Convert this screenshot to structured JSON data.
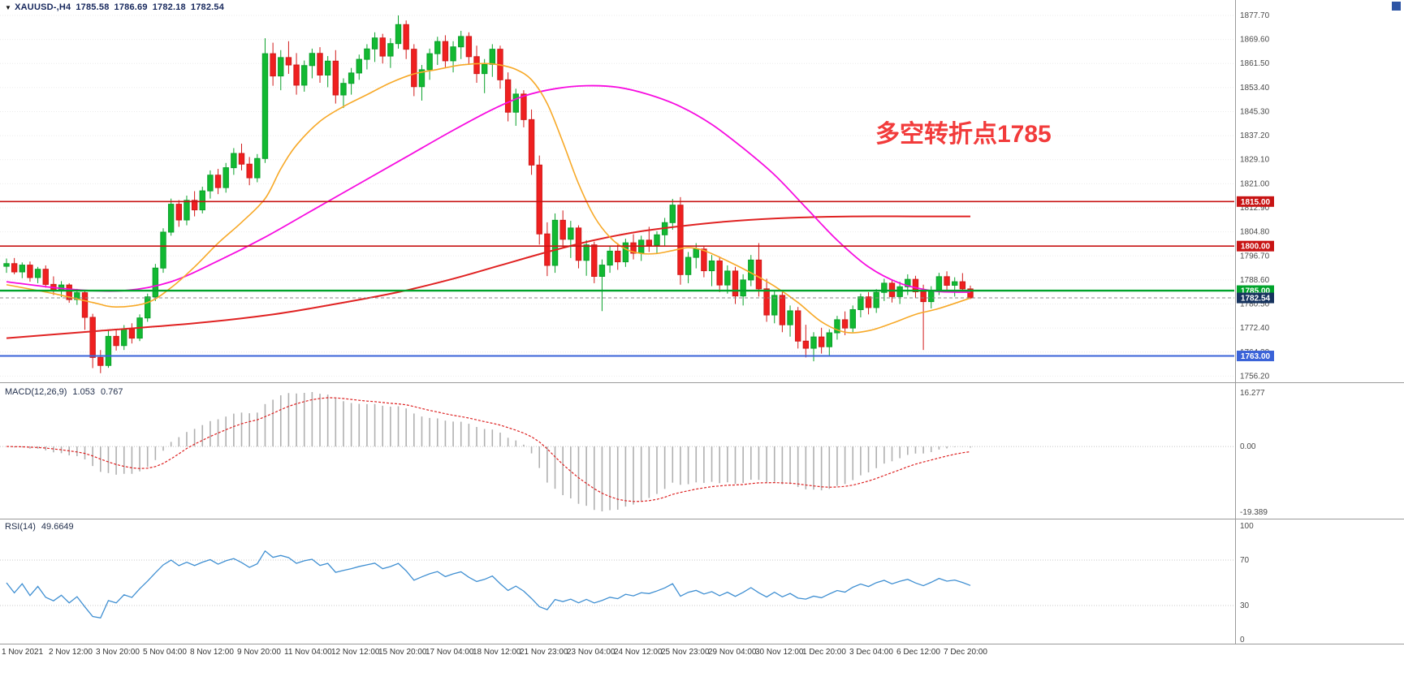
{
  "header": {
    "dropdown": "▼",
    "symbol": "XAUUSD-,H4",
    "open": "1785.58",
    "high": "1786.69",
    "low": "1782.18",
    "close": "1782.54"
  },
  "annotation": {
    "text": "多空转折点1785",
    "color": "#f23b3b"
  },
  "colors": {
    "up_fill": "#12b932",
    "up_stroke": "#0ba12b",
    "down_fill": "#ef2020",
    "down_stroke": "#d11a1a",
    "grid": "#ebebeb",
    "separator": "#9a9a9a",
    "tick_text": "#4a4a4a",
    "time_text": "#333333",
    "macd_hist": "#b0b0b0",
    "macd_signal": "#dd2222",
    "rsi_line": "#3f8fd2",
    "current_dash": "#8a8a8a"
  },
  "chart_data": {
    "type": "candlestick",
    "title": "XAUUSD-,H4",
    "symbol": "XAUUSD",
    "timeframe": "H4",
    "last_bar": {
      "open": 1785.58,
      "high": 1786.69,
      "low": 1782.18,
      "close": 1782.54
    },
    "y_ticks": [
      1877.7,
      1869.6,
      1861.5,
      1853.4,
      1845.3,
      1837.2,
      1829.1,
      1821.0,
      1812.9,
      1804.8,
      1796.7,
      1788.6,
      1780.5,
      1772.4,
      1764.3,
      1756.2
    ],
    "ylim": [
      1754.4,
      1879.6
    ],
    "x_labels": [
      "1 Nov 2021",
      "2 Nov 12:00",
      "3 Nov 20:00",
      "5 Nov 04:00",
      "8 Nov 12:00",
      "9 Nov 20:00",
      "11 Nov 04:00",
      "12 Nov 12:00",
      "15 Nov 20:00",
      "17 Nov 04:00",
      "18 Nov 12:00",
      "21 Nov 23:00",
      "23 Nov 04:00",
      "24 Nov 12:00",
      "25 Nov 23:00",
      "29 Nov 04:00",
      "30 Nov 12:00",
      "1 Dec 20:00",
      "3 Dec 04:00",
      "6 Dec 12:00",
      "7 Dec 20:00"
    ],
    "candles": [
      [
        1793.2,
        1795.8,
        1791.0,
        1794.1
      ],
      [
        1794.1,
        1796.0,
        1790.5,
        1791.3
      ],
      [
        1791.3,
        1794.5,
        1789.2,
        1793.6
      ],
      [
        1793.6,
        1794.8,
        1788.0,
        1789.4
      ],
      [
        1789.4,
        1793.0,
        1787.5,
        1792.2
      ],
      [
        1792.2,
        1793.5,
        1786.0,
        1787.1
      ],
      [
        1787.1,
        1789.8,
        1783.5,
        1785.0
      ],
      [
        1785.0,
        1788.2,
        1782.8,
        1786.9
      ],
      [
        1786.9,
        1787.5,
        1780.9,
        1782.0
      ],
      [
        1782.0,
        1785.6,
        1780.2,
        1784.3
      ],
      [
        1784.3,
        1784.9,
        1771.8,
        1776.0
      ],
      [
        1776.0,
        1777.2,
        1758.9,
        1762.5
      ],
      [
        1762.5,
        1765.0,
        1757.2,
        1759.8
      ],
      [
        1759.8,
        1771.5,
        1759.0,
        1769.6
      ],
      [
        1769.6,
        1772.0,
        1764.8,
        1766.5
      ],
      [
        1766.5,
        1773.4,
        1765.0,
        1772.1
      ],
      [
        1772.1,
        1774.0,
        1767.2,
        1769.0
      ],
      [
        1769.0,
        1777.0,
        1768.0,
        1775.8
      ],
      [
        1775.8,
        1784.0,
        1774.5,
        1782.9
      ],
      [
        1782.9,
        1794.0,
        1781.5,
        1792.6
      ],
      [
        1792.6,
        1806.0,
        1791.0,
        1804.7
      ],
      [
        1804.7,
        1816.0,
        1803.5,
        1814.1
      ],
      [
        1814.1,
        1815.5,
        1806.5,
        1808.8
      ],
      [
        1808.8,
        1817.0,
        1807.0,
        1815.4
      ],
      [
        1815.4,
        1818.5,
        1810.0,
        1812.2
      ],
      [
        1812.2,
        1820.0,
        1811.0,
        1818.6
      ],
      [
        1818.6,
        1825.5,
        1816.0,
        1823.9
      ],
      [
        1823.9,
        1826.0,
        1817.5,
        1819.7
      ],
      [
        1819.7,
        1828.0,
        1818.0,
        1826.4
      ],
      [
        1826.4,
        1833.0,
        1824.0,
        1831.2
      ],
      [
        1831.2,
        1834.5,
        1825.5,
        1827.6
      ],
      [
        1827.6,
        1830.0,
        1820.5,
        1823.0
      ],
      [
        1823.0,
        1831.0,
        1821.5,
        1829.5
      ],
      [
        1829.5,
        1870.0,
        1828.0,
        1864.8
      ],
      [
        1864.8,
        1868.5,
        1854.0,
        1857.3
      ],
      [
        1857.3,
        1866.0,
        1852.5,
        1863.5
      ],
      [
        1863.5,
        1869.0,
        1858.0,
        1861.0
      ],
      [
        1861.0,
        1865.0,
        1851.0,
        1854.2
      ],
      [
        1854.2,
        1862.5,
        1852.0,
        1860.8
      ],
      [
        1860.8,
        1866.5,
        1856.5,
        1864.9
      ],
      [
        1864.9,
        1867.0,
        1855.0,
        1857.6
      ],
      [
        1857.6,
        1864.0,
        1853.5,
        1862.3
      ],
      [
        1862.3,
        1866.0,
        1848.0,
        1850.9
      ],
      [
        1850.9,
        1856.5,
        1846.5,
        1854.8
      ],
      [
        1854.8,
        1860.0,
        1851.0,
        1858.3
      ],
      [
        1858.3,
        1864.5,
        1856.0,
        1862.9
      ],
      [
        1862.9,
        1868.0,
        1859.5,
        1866.4
      ],
      [
        1866.4,
        1872.0,
        1862.0,
        1870.1
      ],
      [
        1870.1,
        1871.5,
        1861.5,
        1864.0
      ],
      [
        1864.0,
        1870.0,
        1860.0,
        1868.2
      ],
      [
        1868.2,
        1877.7,
        1866.5,
        1874.6
      ],
      [
        1874.6,
        1876.0,
        1863.0,
        1866.3
      ],
      [
        1866.3,
        1868.0,
        1850.5,
        1853.7
      ],
      [
        1853.7,
        1861.0,
        1849.0,
        1859.4
      ],
      [
        1859.4,
        1866.5,
        1856.0,
        1864.8
      ],
      [
        1864.8,
        1870.5,
        1861.0,
        1868.9
      ],
      [
        1868.9,
        1871.0,
        1860.0,
        1862.4
      ],
      [
        1862.4,
        1869.0,
        1858.5,
        1867.1
      ],
      [
        1867.1,
        1872.5,
        1863.0,
        1870.6
      ],
      [
        1870.6,
        1872.0,
        1861.0,
        1863.8
      ],
      [
        1863.8,
        1867.5,
        1855.0,
        1858.1
      ],
      [
        1858.1,
        1863.0,
        1851.5,
        1861.2
      ],
      [
        1861.2,
        1868.0,
        1857.0,
        1866.3
      ],
      [
        1866.3,
        1867.5,
        1853.0,
        1856.0
      ],
      [
        1856.0,
        1858.5,
        1842.0,
        1845.1
      ],
      [
        1845.1,
        1853.0,
        1840.5,
        1851.2
      ],
      [
        1851.2,
        1852.5,
        1840.0,
        1842.6
      ],
      [
        1842.6,
        1846.0,
        1824.0,
        1827.3
      ],
      [
        1827.3,
        1830.5,
        1800.5,
        1804.1
      ],
      [
        1804.1,
        1808.0,
        1789.9,
        1793.5
      ],
      [
        1793.5,
        1811.0,
        1791.0,
        1808.7
      ],
      [
        1808.7,
        1812.0,
        1799.5,
        1802.3
      ],
      [
        1802.3,
        1808.5,
        1796.0,
        1806.1
      ],
      [
        1806.1,
        1807.0,
        1792.5,
        1795.2
      ],
      [
        1795.2,
        1802.0,
        1790.0,
        1800.4
      ],
      [
        1800.4,
        1801.5,
        1787.5,
        1789.8
      ],
      [
        1789.8,
        1795.5,
        1778.1,
        1793.6
      ],
      [
        1793.6,
        1800.0,
        1791.0,
        1798.3
      ],
      [
        1798.3,
        1801.0,
        1792.0,
        1794.7
      ],
      [
        1794.7,
        1802.5,
        1793.0,
        1801.1
      ],
      [
        1801.1,
        1804.0,
        1795.5,
        1797.6
      ],
      [
        1797.6,
        1803.5,
        1795.0,
        1802.0
      ],
      [
        1802.0,
        1806.5,
        1798.0,
        1800.3
      ],
      [
        1800.3,
        1805.0,
        1797.5,
        1803.8
      ],
      [
        1803.8,
        1809.5,
        1800.0,
        1807.9
      ],
      [
        1807.9,
        1815.9,
        1805.5,
        1813.8
      ],
      [
        1813.8,
        1816.5,
        1787.0,
        1790.4
      ],
      [
        1790.4,
        1798.0,
        1787.5,
        1796.2
      ],
      [
        1796.2,
        1801.0,
        1792.5,
        1799.0
      ],
      [
        1799.0,
        1800.0,
        1789.5,
        1791.7
      ],
      [
        1791.7,
        1797.0,
        1786.5,
        1795.0
      ],
      [
        1795.0,
        1796.5,
        1784.5,
        1786.9
      ],
      [
        1786.9,
        1793.5,
        1784.0,
        1791.6
      ],
      [
        1791.6,
        1793.0,
        1780.5,
        1783.2
      ],
      [
        1783.2,
        1790.5,
        1780.0,
        1788.6
      ],
      [
        1788.6,
        1797.0,
        1786.5,
        1795.3
      ],
      [
        1795.3,
        1801.0,
        1783.0,
        1785.6
      ],
      [
        1785.6,
        1789.0,
        1774.5,
        1776.8
      ],
      [
        1776.8,
        1785.0,
        1774.0,
        1783.4
      ],
      [
        1783.4,
        1784.5,
        1771.0,
        1773.5
      ],
      [
        1773.5,
        1780.0,
        1769.5,
        1778.2
      ],
      [
        1778.2,
        1779.5,
        1765.5,
        1768.0
      ],
      [
        1768.0,
        1773.5,
        1762.5,
        1765.6
      ],
      [
        1765.6,
        1771.0,
        1761.2,
        1769.4
      ],
      [
        1769.4,
        1772.5,
        1763.8,
        1766.1
      ],
      [
        1766.1,
        1772.0,
        1763.0,
        1770.8
      ],
      [
        1770.8,
        1776.5,
        1768.5,
        1775.2
      ],
      [
        1775.2,
        1778.0,
        1770.0,
        1772.4
      ],
      [
        1772.4,
        1780.0,
        1771.0,
        1778.6
      ],
      [
        1778.6,
        1784.0,
        1776.0,
        1782.9
      ],
      [
        1782.9,
        1784.5,
        1777.0,
        1779.3
      ],
      [
        1779.3,
        1785.5,
        1777.5,
        1784.4
      ],
      [
        1784.4,
        1789.0,
        1781.5,
        1787.5
      ],
      [
        1787.5,
        1788.5,
        1781.0,
        1783.0
      ],
      [
        1783.0,
        1788.0,
        1780.5,
        1786.3
      ],
      [
        1786.3,
        1790.5,
        1783.5,
        1788.8
      ],
      [
        1788.8,
        1790.0,
        1782.5,
        1784.6
      ],
      [
        1784.6,
        1787.0,
        1765.0,
        1781.3
      ],
      [
        1781.3,
        1786.5,
        1779.0,
        1785.1
      ],
      [
        1785.1,
        1791.0,
        1783.5,
        1789.7
      ],
      [
        1789.7,
        1791.5,
        1785.0,
        1786.8
      ],
      [
        1786.8,
        1789.5,
        1783.0,
        1788.0
      ],
      [
        1788.0,
        1790.9,
        1784.5,
        1785.6
      ],
      [
        1785.58,
        1786.69,
        1782.18,
        1782.54
      ]
    ],
    "hlines": [
      {
        "id": "resistance-1815",
        "price": 1815.0,
        "label": "1815.00",
        "color": "#c81414",
        "width": 1.6
      },
      {
        "id": "resistance-1800",
        "price": 1800.0,
        "label": "1800.00",
        "color": "#c81414",
        "width": 1.6
      },
      {
        "id": "pivot-1785",
        "price": 1785.0,
        "label": "1785.00",
        "color": "#00a32b",
        "width": 2.4
      },
      {
        "id": "support-1763",
        "price": 1763.0,
        "label": "1763.00",
        "color": "#3a63d8",
        "width": 2.0
      }
    ],
    "current_price": {
      "value": 1782.54,
      "label": "1782.54",
      "badge_color": "#16335e"
    },
    "moving_averages": [
      {
        "id": "ma-slow-red",
        "color": "#e02222",
        "width": 2.0,
        "points": [
          [
            0,
            1769
          ],
          [
            12,
            1771.5
          ],
          [
            24,
            1774
          ],
          [
            34,
            1777
          ],
          [
            42,
            1780.5
          ],
          [
            50,
            1784.5
          ],
          [
            57,
            1789
          ],
          [
            63,
            1793.5
          ],
          [
            69,
            1798
          ],
          [
            75,
            1802
          ],
          [
            81,
            1805
          ],
          [
            87,
            1807
          ],
          [
            93,
            1808.5
          ],
          [
            100,
            1809.5
          ],
          [
            108,
            1810
          ],
          [
            116,
            1810
          ],
          [
            123,
            1810
          ]
        ]
      },
      {
        "id": "ma-mid-magenta",
        "color": "#f70ce0",
        "width": 1.8,
        "points": [
          [
            0,
            1788
          ],
          [
            8,
            1785.5
          ],
          [
            15,
            1785
          ],
          [
            21,
            1788
          ],
          [
            27,
            1795
          ],
          [
            33,
            1803
          ],
          [
            39,
            1812
          ],
          [
            45,
            1821
          ],
          [
            51,
            1830
          ],
          [
            57,
            1839
          ],
          [
            62,
            1846
          ],
          [
            66,
            1850.5
          ],
          [
            70,
            1853
          ],
          [
            74,
            1854
          ],
          [
            78,
            1853.5
          ],
          [
            82,
            1851
          ],
          [
            86,
            1847
          ],
          [
            90,
            1841
          ],
          [
            94,
            1833
          ],
          [
            98,
            1824
          ],
          [
            102,
            1813
          ],
          [
            106,
            1802
          ],
          [
            110,
            1793
          ],
          [
            114,
            1787.5
          ],
          [
            118,
            1785
          ],
          [
            121,
            1784.5
          ],
          [
            123,
            1784.5
          ]
        ]
      },
      {
        "id": "ma-fast-orange",
        "color": "#f7a928",
        "width": 1.6,
        "points": [
          [
            0,
            1787
          ],
          [
            6,
            1784
          ],
          [
            11,
            1781
          ],
          [
            14,
            1779.5
          ],
          [
            18,
            1781
          ],
          [
            21,
            1786
          ],
          [
            24,
            1793
          ],
          [
            27,
            1801
          ],
          [
            30,
            1808
          ],
          [
            33,
            1816
          ],
          [
            35,
            1826
          ],
          [
            37,
            1834
          ],
          [
            40,
            1842
          ],
          [
            43,
            1847
          ],
          [
            46,
            1851
          ],
          [
            49,
            1855
          ],
          [
            52,
            1858
          ],
          [
            55,
            1859.5
          ],
          [
            58,
            1861
          ],
          [
            61,
            1861.5
          ],
          [
            63,
            1861
          ],
          [
            65,
            1859.5
          ],
          [
            67,
            1856
          ],
          [
            69,
            1848
          ],
          [
            71,
            1835
          ],
          [
            73,
            1821
          ],
          [
            75,
            1810
          ],
          [
            77,
            1803
          ],
          [
            79,
            1799
          ],
          [
            81,
            1797.5
          ],
          [
            83,
            1797.5
          ],
          [
            85,
            1798.5
          ],
          [
            87,
            1799.5
          ],
          [
            89,
            1798.5
          ],
          [
            92,
            1795
          ],
          [
            95,
            1791
          ],
          [
            98,
            1786.5
          ],
          [
            101,
            1781
          ],
          [
            104,
            1774.5
          ],
          [
            107,
            1771
          ],
          [
            110,
            1771.5
          ],
          [
            113,
            1774
          ],
          [
            116,
            1777
          ],
          [
            119,
            1779
          ],
          [
            123,
            1782.5
          ]
        ]
      }
    ],
    "indicators": {
      "macd": {
        "label": "MACD(12,26,9)",
        "value_main": "1.053",
        "value_signal": "0.767",
        "fast": 12,
        "slow": 26,
        "signal": 9,
        "axis_ticks": [
          "16.277",
          "0.00",
          "-19.389"
        ]
      },
      "rsi": {
        "label": "RSI(14)",
        "value": "49.6649",
        "period": 14,
        "axis_ticks": [
          "100",
          "70",
          "30",
          "0"
        ],
        "upper_level": 70,
        "lower_level": 30
      }
    }
  }
}
